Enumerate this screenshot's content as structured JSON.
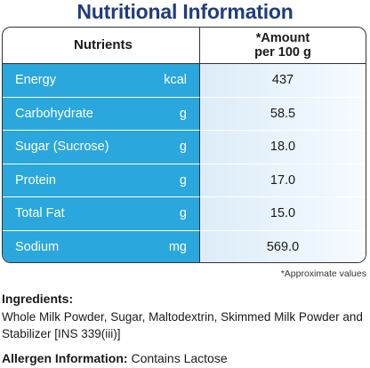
{
  "title": "Nutritional Information",
  "table": {
    "header_nutrients": "Nutrients",
    "header_amount_line1": "*Amount",
    "header_amount_line2": "per 100 g",
    "rows": [
      {
        "name": "Energy",
        "unit": "kcal",
        "value": "437"
      },
      {
        "name": "Carbohydrate",
        "unit": "g",
        "value": "58.5"
      },
      {
        "name": "Sugar (Sucrose)",
        "unit": "g",
        "value": "18.0"
      },
      {
        "name": "Protein",
        "unit": "g",
        "value": "17.0"
      },
      {
        "name": "Total Fat",
        "unit": "g",
        "value": "15.0"
      },
      {
        "name": "Sodium",
        "unit": "mg",
        "value": "569.0"
      }
    ]
  },
  "footnote": "*Approximate values",
  "ingredients": {
    "heading": "Ingredients:",
    "text": "Whole Milk Powder, Sugar, Maltodextrin, Skimmed Milk Powder and Stabilizer [INS 339(iii)]"
  },
  "allergen": {
    "label": "Allergen Information:",
    "text": " Contains Lactose"
  },
  "colors": {
    "title": "#1f3d7a",
    "nutrient_cell": "#2aa7dc",
    "value_cell": "#dcecf8"
  }
}
